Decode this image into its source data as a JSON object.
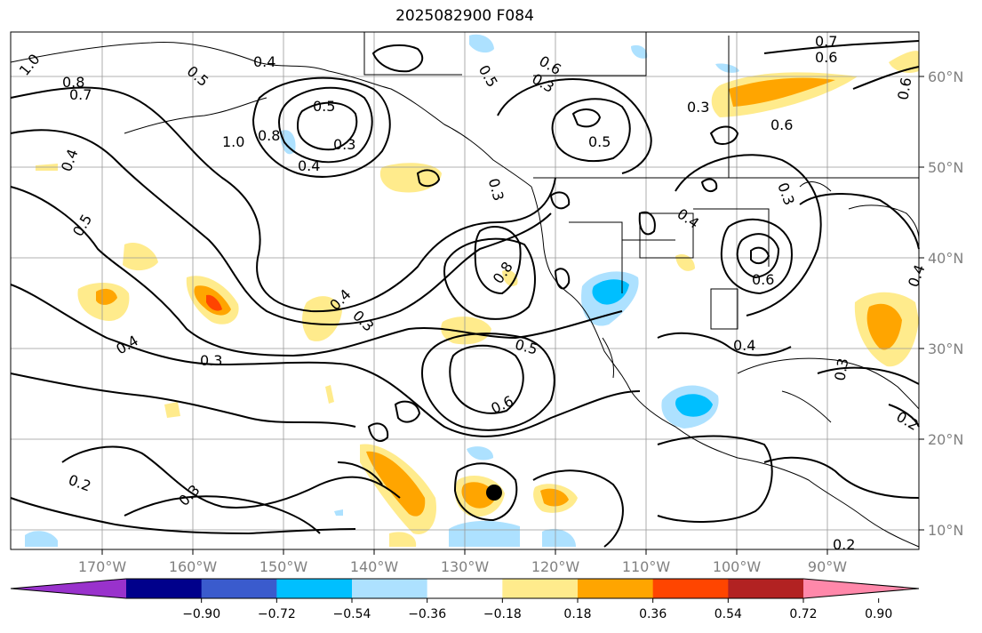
{
  "title": "2025082900 F084",
  "lon_ticks": [
    "170°W",
    "160°W",
    "150°W",
    "140°W",
    "130°W",
    "120°W",
    "110°W",
    "100°W",
    "90°W"
  ],
  "lat_ticks": [
    "60°N",
    "50°N",
    "40°N",
    "30°N",
    "20°N",
    "10°N"
  ],
  "colorbar": {
    "colors": [
      "#9932cc",
      "#00008b",
      "#3a5bcd",
      "#00bfff",
      "#ade1ff",
      "#ffffff",
      "#ffeb8c",
      "#ffa500",
      "#ff4500",
      "#b22222",
      "#ff88aa"
    ],
    "tick_labels": [
      "−0.90",
      "−0.72",
      "−0.54",
      "−0.36",
      "−0.18",
      "0.18",
      "0.36",
      "0.54",
      "0.72",
      "0.90"
    ]
  },
  "contour_labels": [
    "1.0",
    "0.8",
    "0.7",
    "0.5",
    "0.4",
    "0.5",
    "0.3",
    "0.4",
    "1.0",
    "0.8",
    "0.4",
    "0.5",
    "0.4",
    "0.3",
    "0.4",
    "0.3",
    "0.2",
    "0.3",
    "0.5",
    "0.3",
    "0.5",
    "0.6",
    "0.7",
    "0.6",
    "0.3",
    "0.6",
    "0.4",
    "0.3",
    "0.6",
    "0.8",
    "0.5",
    "0.6",
    "0.4",
    "0.2",
    "0.3",
    "0.2",
    "0.6",
    "0.4",
    "0.3"
  ],
  "marker": {
    "label": "storm-center",
    "lon": -127.5,
    "lat": 14
  }
}
